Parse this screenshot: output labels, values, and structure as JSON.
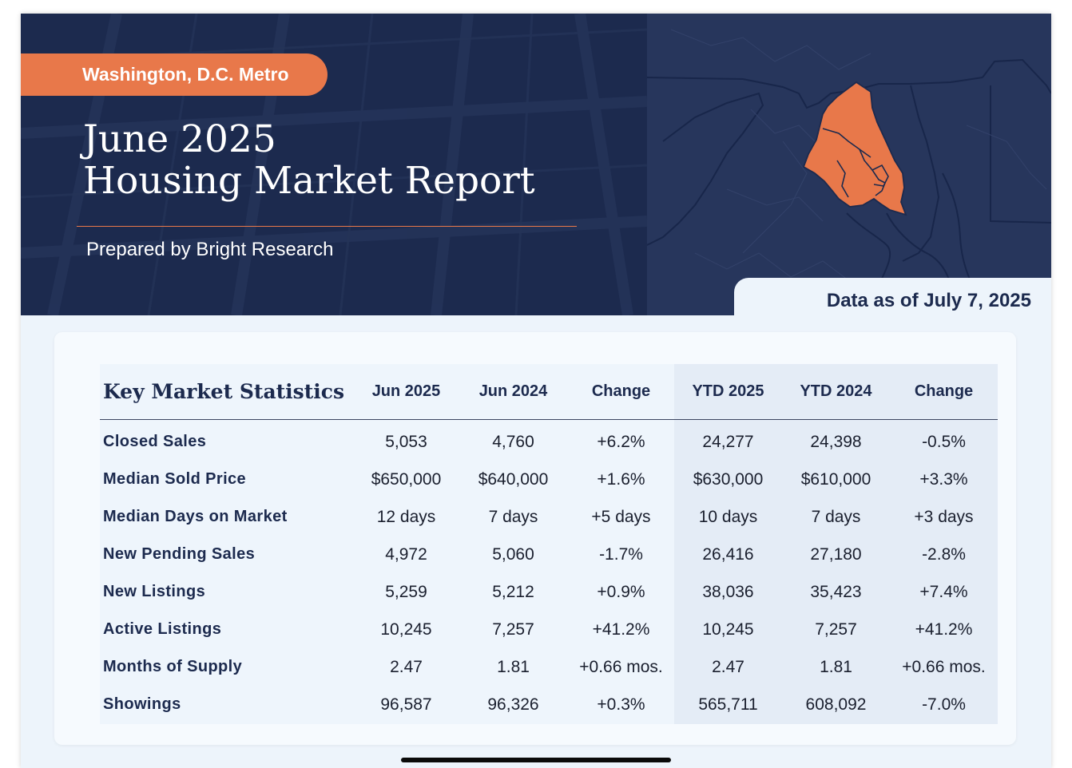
{
  "header": {
    "region": "Washington, D.C. Metro",
    "title_line1": "June 2025",
    "title_line2": "Housing Market Report",
    "prepared_by": "Prepared by Bright Research",
    "data_as_of": "Data as of July 7, 2025",
    "map_icon": "dc-metro-region-map-icon"
  },
  "colors": {
    "navy": "#1c2a4e",
    "accent_orange": "#e8784a",
    "page_bg": "#edf4fb"
  },
  "table": {
    "heading": "Key Market Statistics",
    "columns": [
      "Jun 2025",
      "Jun 2024",
      "Change",
      "YTD 2025",
      "YTD 2024",
      "Change"
    ],
    "rows": [
      {
        "label": "Closed Sales",
        "values": [
          "5,053",
          "4,760",
          "+6.2%",
          "24,277",
          "24,398",
          "-0.5%"
        ]
      },
      {
        "label": "Median Sold Price",
        "values": [
          "$650,000",
          "$640,000",
          "+1.6%",
          "$630,000",
          "$610,000",
          "+3.3%"
        ]
      },
      {
        "label": "Median Days on Market",
        "values": [
          "12 days",
          "7 days",
          "+5 days",
          "10 days",
          "7 days",
          "+3 days"
        ]
      },
      {
        "label": "New Pending Sales",
        "values": [
          "4,972",
          "5,060",
          "-1.7%",
          "26,416",
          "27,180",
          "-2.8%"
        ]
      },
      {
        "label": "New Listings",
        "values": [
          "5,259",
          "5,212",
          "+0.9%",
          "38,036",
          "35,423",
          "+7.4%"
        ]
      },
      {
        "label": "Active Listings",
        "values": [
          "10,245",
          "7,257",
          "+41.2%",
          "10,245",
          "7,257",
          "+41.2%"
        ]
      },
      {
        "label": "Months of Supply",
        "values": [
          "2.47",
          "1.81",
          "+0.66 mos.",
          "2.47",
          "1.81",
          "+0.66 mos."
        ]
      },
      {
        "label": "Showings",
        "values": [
          "96,587",
          "96,326",
          "+0.3%",
          "565,711",
          "608,092",
          "-7.0%"
        ]
      }
    ]
  }
}
